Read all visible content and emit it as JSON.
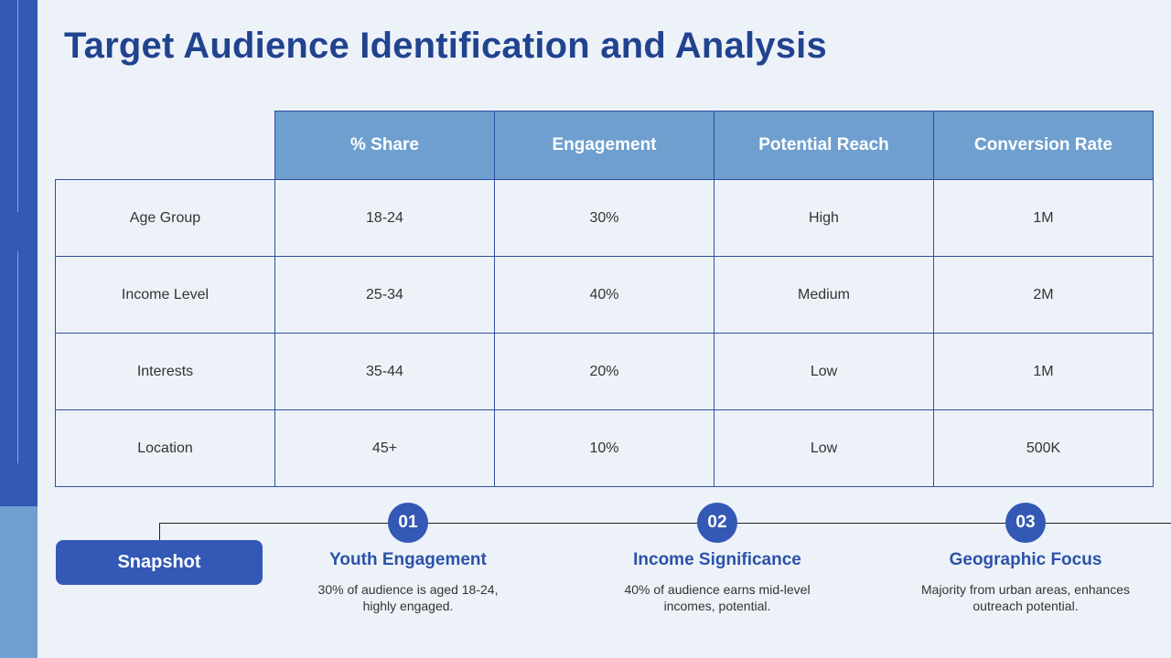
{
  "title": "Target Audience Identification and Analysis",
  "table": {
    "headers": [
      "% Share",
      "Engagement",
      "Potential Reach",
      "Conversion Rate"
    ],
    "rows": [
      {
        "label": "Age Group",
        "cells": [
          "18-24",
          "30%",
          "High",
          "1M"
        ]
      },
      {
        "label": "Income Level",
        "cells": [
          "25-34",
          "40%",
          "Medium",
          "2M"
        ]
      },
      {
        "label": "Interests",
        "cells": [
          "35-44",
          "20%",
          "Low",
          "1M"
        ]
      },
      {
        "label": "Location",
        "cells": [
          "45+",
          "10%",
          "Low",
          "500K"
        ]
      }
    ]
  },
  "snapshot": {
    "label": "Snapshot"
  },
  "steps": [
    {
      "number": "01",
      "title": "Youth Engagement",
      "description": "30% of audience is aged 18-24, highly engaged."
    },
    {
      "number": "02",
      "title": "Income Significance",
      "description": "40% of audience earns mid-level incomes, potential."
    },
    {
      "number": "03",
      "title": "Geographic Focus",
      "description": "Majority from urban areas, enhances outreach potential."
    }
  ],
  "colors": {
    "accent": "#3358b5",
    "header_fill": "#6e9fcf",
    "title_text": "#21438f",
    "background": "#edf2f9"
  }
}
